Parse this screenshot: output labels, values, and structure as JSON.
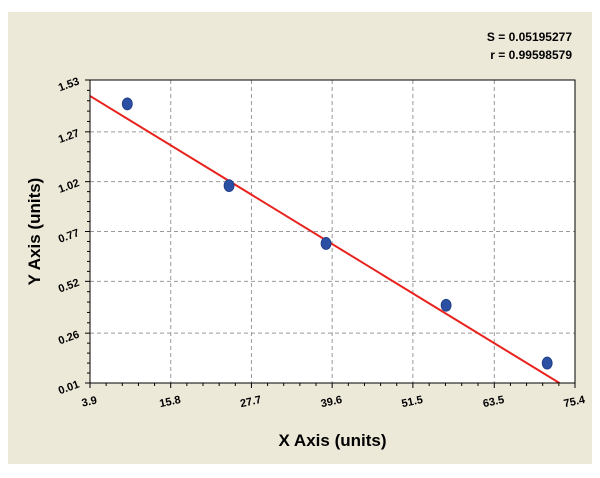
{
  "stats": {
    "s_label": "S = 0.05195277",
    "r_label": "r = 0.99598579"
  },
  "chart_data": {
    "type": "scatter",
    "title": "",
    "xlabel": "X Axis (units)",
    "ylabel": "Y Axis (units)",
    "xlim": [
      3.9,
      75.4
    ],
    "ylim": [
      0.01,
      1.53
    ],
    "xticks": [
      3.9,
      15.8,
      27.7,
      39.6,
      51.5,
      63.5,
      75.4
    ],
    "xtick_labels": [
      "3.9",
      "15.8",
      "27.7",
      "39.6",
      "51.5",
      "63.5",
      "75.4"
    ],
    "yticks": [
      0.01,
      0.26,
      0.52,
      0.77,
      1.02,
      1.27,
      1.53
    ],
    "ytick_labels": [
      "0.01",
      "0.26",
      "0.52",
      "0.77",
      "1.02",
      "1.27",
      "1.53"
    ],
    "grid": true,
    "points": [
      {
        "x": 9.4,
        "y": 1.41
      },
      {
        "x": 24.4,
        "y": 1.0
      },
      {
        "x": 38.7,
        "y": 0.71
      },
      {
        "x": 56.4,
        "y": 0.4
      },
      {
        "x": 71.3,
        "y": 0.11
      }
    ],
    "fit_line": {
      "x": [
        3.9,
        73.1
      ],
      "y": [
        1.45,
        0.01
      ]
    },
    "colors": {
      "points": "#2a4fa3",
      "fit_line": "#e8231e",
      "grid": "#9a9a9a",
      "plot_bg": "#ffffff"
    }
  }
}
